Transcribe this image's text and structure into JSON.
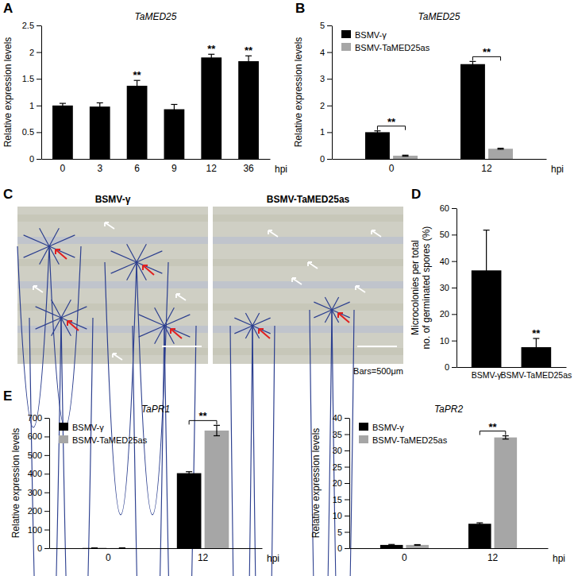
{
  "chart_data": [
    {
      "panel": "A",
      "type": "bar",
      "title": "TaMED25",
      "x_label": "hpi",
      "y_label": "Relative expression levels",
      "categories": [
        "0",
        "3",
        "6",
        "9",
        "12",
        "36"
      ],
      "values": [
        1.0,
        0.98,
        1.37,
        0.93,
        1.9,
        1.83
      ],
      "errors": [
        0.04,
        0.07,
        0.1,
        0.09,
        0.06,
        0.1
      ],
      "significance": [
        null,
        null,
        "**",
        null,
        "**",
        "**"
      ],
      "color": "#000000",
      "ylim": [
        0,
        2.5
      ],
      "yticks": [
        0,
        0.5,
        1,
        1.5,
        2,
        2.5
      ]
    },
    {
      "panel": "B",
      "type": "bar",
      "title": "TaMED25",
      "x_label": "hpi",
      "y_label": "Relative expression levels",
      "categories": [
        "0",
        "12"
      ],
      "series": [
        {
          "name": "BSMV-γ",
          "color": "#000000",
          "values": [
            1.0,
            3.55
          ],
          "errors": [
            0.05,
            0.1
          ]
        },
        {
          "name": "BSMV-TaMED25as",
          "color": "#a6a6a6",
          "values": [
            0.12,
            0.38
          ],
          "errors": [
            0.02,
            0.02
          ]
        }
      ],
      "significance": [
        "**",
        "**"
      ],
      "legend": "upper left",
      "ylim": [
        0,
        5
      ],
      "yticks": [
        0,
        1,
        2,
        3,
        4,
        5
      ]
    },
    {
      "panel": "C",
      "type": "image",
      "labels": [
        "BSMV-γ",
        "BSMV-TaMED25as"
      ],
      "scale_bar": "Bars=500μm"
    },
    {
      "panel": "D",
      "type": "bar",
      "y_label": [
        "Microcolonies per total",
        "no. of germinated spores (%)"
      ],
      "categories": [
        "BSMV-γ",
        "BSMV-TaMED25as"
      ],
      "values": [
        36.5,
        7.5
      ],
      "errors": [
        15.2,
        3.3
      ],
      "significance": [
        null,
        "**"
      ],
      "color": "#000000",
      "ylim": [
        0,
        60
      ],
      "yticks": [
        0,
        10,
        20,
        30,
        40,
        50,
        60
      ]
    },
    {
      "panel": "E",
      "type": "bar",
      "title": "TaPR1",
      "x_label": "hpi",
      "y_label": "Relative expression levels",
      "categories": [
        "0",
        "12"
      ],
      "series": [
        {
          "name": "BSMV-γ",
          "color": "#000000",
          "values": [
            1,
            403
          ],
          "errors": [
            0.5,
            8
          ]
        },
        {
          "name": "BSMV-TaMED25as",
          "color": "#a6a6a6",
          "values": [
            1,
            632
          ],
          "errors": [
            1,
            28
          ]
        }
      ],
      "significance": [
        null,
        "**"
      ],
      "legend": "upper left",
      "ylim": [
        0,
        700
      ],
      "yticks": [
        0,
        100,
        200,
        300,
        400,
        500,
        600,
        700
      ]
    },
    {
      "type": "bar",
      "title": "TaPR2",
      "x_label": "hpi",
      "y_label": "Relative expression levels",
      "categories": [
        "0",
        "12"
      ],
      "series": [
        {
          "name": "BSMV-γ",
          "color": "#000000",
          "values": [
            1.0,
            7.5
          ],
          "errors": [
            0.15,
            0.3
          ]
        },
        {
          "name": "BSMV-TaMED25as",
          "color": "#a6a6a6",
          "values": [
            1.0,
            34
          ],
          "errors": [
            0.1,
            0.5
          ]
        }
      ],
      "significance": [
        null,
        "**"
      ],
      "legend": "upper left",
      "ylim": [
        0,
        40
      ],
      "yticks": [
        0,
        5,
        10,
        15,
        20,
        25,
        30,
        35,
        40
      ]
    }
  ]
}
